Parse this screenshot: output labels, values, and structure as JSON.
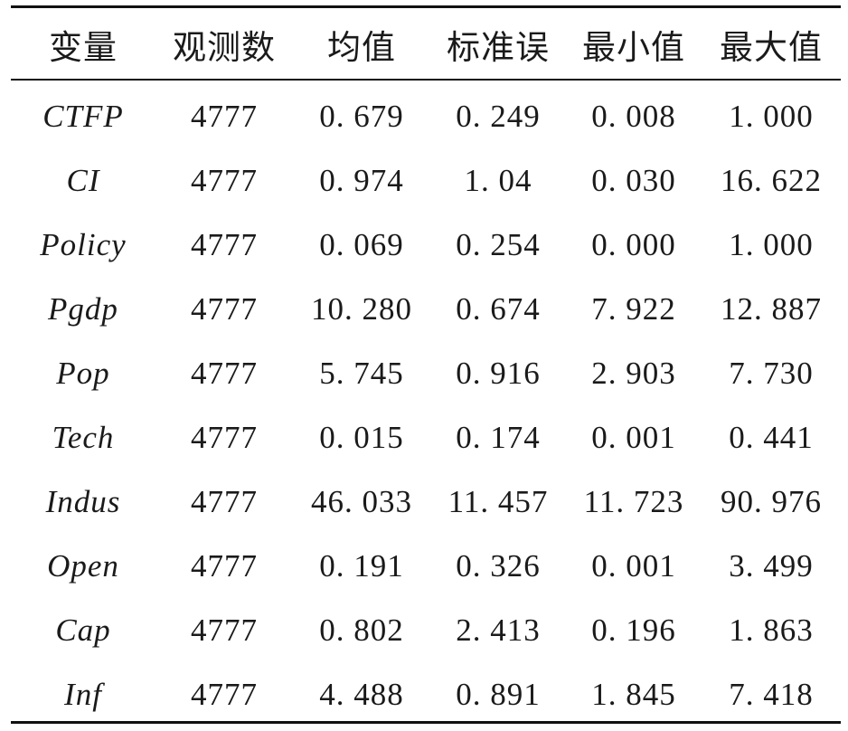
{
  "table": {
    "headers": [
      "变量",
      "观测数",
      "均值",
      "标准误",
      "最小值",
      "最大值"
    ],
    "rows": [
      [
        "CTFP",
        "4777",
        "0. 679",
        "0. 249",
        "0. 008",
        "1. 000"
      ],
      [
        "CI",
        "4777",
        "0. 974",
        "1. 04",
        "0. 030",
        "16. 622"
      ],
      [
        "Policy",
        "4777",
        "0. 069",
        "0. 254",
        "0. 000",
        "1. 000"
      ],
      [
        "Pgdp",
        "4777",
        "10. 280",
        "0. 674",
        "7. 922",
        "12. 887"
      ],
      [
        "Pop",
        "4777",
        "5. 745",
        "0. 916",
        "2. 903",
        "7. 730"
      ],
      [
        "Tech",
        "4777",
        "0. 015",
        "0. 174",
        "0. 001",
        "0. 441"
      ],
      [
        "Indus",
        "4777",
        "46. 033",
        "11. 457",
        "11. 723",
        "90. 976"
      ],
      [
        "Open",
        "4777",
        "0. 191",
        "0. 326",
        "0. 001",
        "3. 499"
      ],
      [
        "Cap",
        "4777",
        "0. 802",
        "2. 413",
        "0. 196",
        "1. 863"
      ],
      [
        "Inf",
        "4777",
        "4. 488",
        "0. 891",
        "1. 845",
        "7. 418"
      ]
    ]
  }
}
